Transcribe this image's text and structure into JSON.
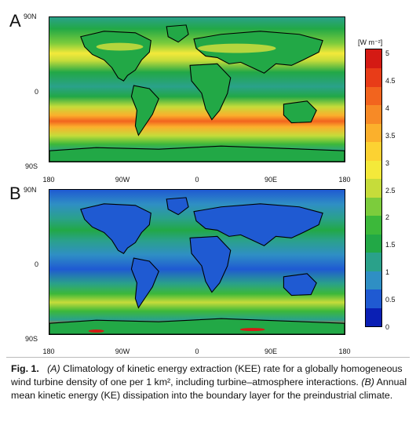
{
  "panels": [
    {
      "letter": "A",
      "lat_top": "90N",
      "lat_mid": "0",
      "lat_bot": "90S",
      "lon_labels": [
        "180",
        "90W",
        "0",
        "90E",
        "180"
      ]
    },
    {
      "letter": "B",
      "lat_top": "90N",
      "lat_mid": "0",
      "lat_bot": "90S",
      "lon_labels": [
        "180",
        "90W",
        "0",
        "90E",
        "180"
      ]
    }
  ],
  "colorbar": {
    "unit": "[W m⁻²]",
    "ticks": [
      "5",
      "4.5",
      "4",
      "3.5",
      "3",
      "2.5",
      "2",
      "1.5",
      "1",
      "0.5",
      "0"
    ],
    "colors": [
      "#0a1fb4",
      "#1f5ad2",
      "#2f8fc4",
      "#2aa18a",
      "#22a846",
      "#3cb83a",
      "#7ccc3c",
      "#c6dc3a",
      "#f4e93a",
      "#fcd232",
      "#fbb02c",
      "#f78a26",
      "#f2641e",
      "#e83c18",
      "#d41a14"
    ]
  },
  "caption": {
    "label": "Fig. 1.",
    "part_a_letter": "(A)",
    "part_a_text": " Climatology of kinetic energy extraction (KEE) rate for a globally homogeneous wind turbine density of one per 1 km², including turbine–atmosphere interactions. ",
    "part_b_letter": "(B)",
    "part_b_text": " Annual mean kinetic energy (KE) dissipation into the boundary layer for the preindustrial climate."
  }
}
